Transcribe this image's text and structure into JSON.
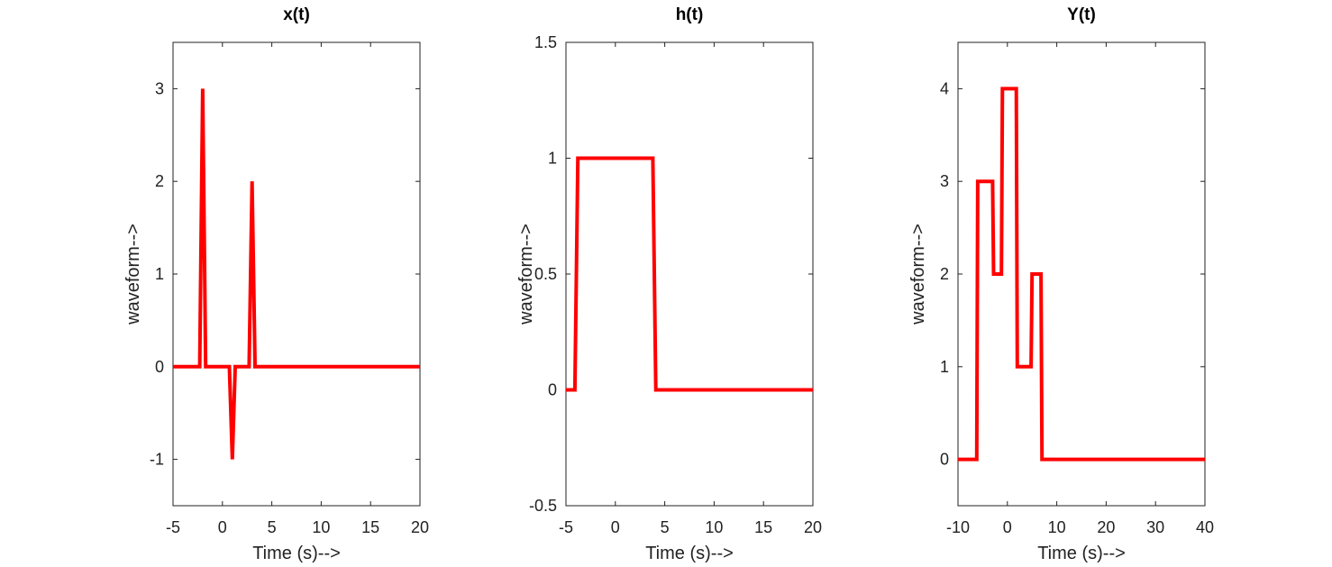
{
  "figure": {
    "background": "#ffffff",
    "line_color": "#ff0000"
  },
  "chart_data": [
    {
      "type": "line",
      "title": "x(t)",
      "xlabel": "Time (s)-->",
      "ylabel": "waveform-->",
      "xlim": [
        -5,
        20
      ],
      "ylim": [
        -1.5,
        3.5
      ],
      "xticks": [
        -5,
        0,
        5,
        10,
        15,
        20
      ],
      "yticks": [
        -1,
        0,
        1,
        2,
        3
      ],
      "grid": false,
      "series": [
        {
          "color": "#ff0000",
          "x": [
            -5,
            -2.3,
            -2,
            -1.7,
            0.7,
            1,
            1.3,
            2.7,
            3,
            3.3,
            20
          ],
          "y": [
            0,
            0,
            3,
            0,
            0,
            -1,
            0,
            0,
            2,
            0,
            0
          ]
        }
      ]
    },
    {
      "type": "line",
      "title": "h(t)",
      "xlabel": "Time (s)-->",
      "ylabel": "waveform-->",
      "xlim": [
        -5,
        20
      ],
      "ylim": [
        -0.5,
        1.5
      ],
      "xticks": [
        -5,
        0,
        5,
        10,
        15,
        20
      ],
      "yticks": [
        -0.5,
        0,
        0.5,
        1,
        1.5
      ],
      "grid": false,
      "series": [
        {
          "color": "#ff0000",
          "x": [
            -5,
            -4.1,
            -3.8,
            3.8,
            4.1,
            20
          ],
          "y": [
            0,
            0,
            1,
            1,
            0,
            0
          ]
        }
      ]
    },
    {
      "type": "line",
      "title": "Y(t)",
      "xlabel": "Time (s)-->",
      "ylabel": "waveform-->",
      "xlim": [
        -10,
        40
      ],
      "ylim": [
        -0.5,
        4.5
      ],
      "xticks": [
        -10,
        0,
        10,
        20,
        30,
        40
      ],
      "yticks": [
        0,
        1,
        2,
        3,
        4
      ],
      "grid": false,
      "series": [
        {
          "color": "#ff0000",
          "x": [
            -10,
            -6.2,
            -6,
            -3,
            -2.8,
            -1.2,
            -1,
            1.8,
            2,
            4.8,
            5,
            6.8,
            7,
            40
          ],
          "y": [
            0,
            0,
            3,
            3,
            2,
            2,
            4,
            4,
            1,
            1,
            2,
            2,
            0,
            0
          ]
        }
      ]
    }
  ]
}
